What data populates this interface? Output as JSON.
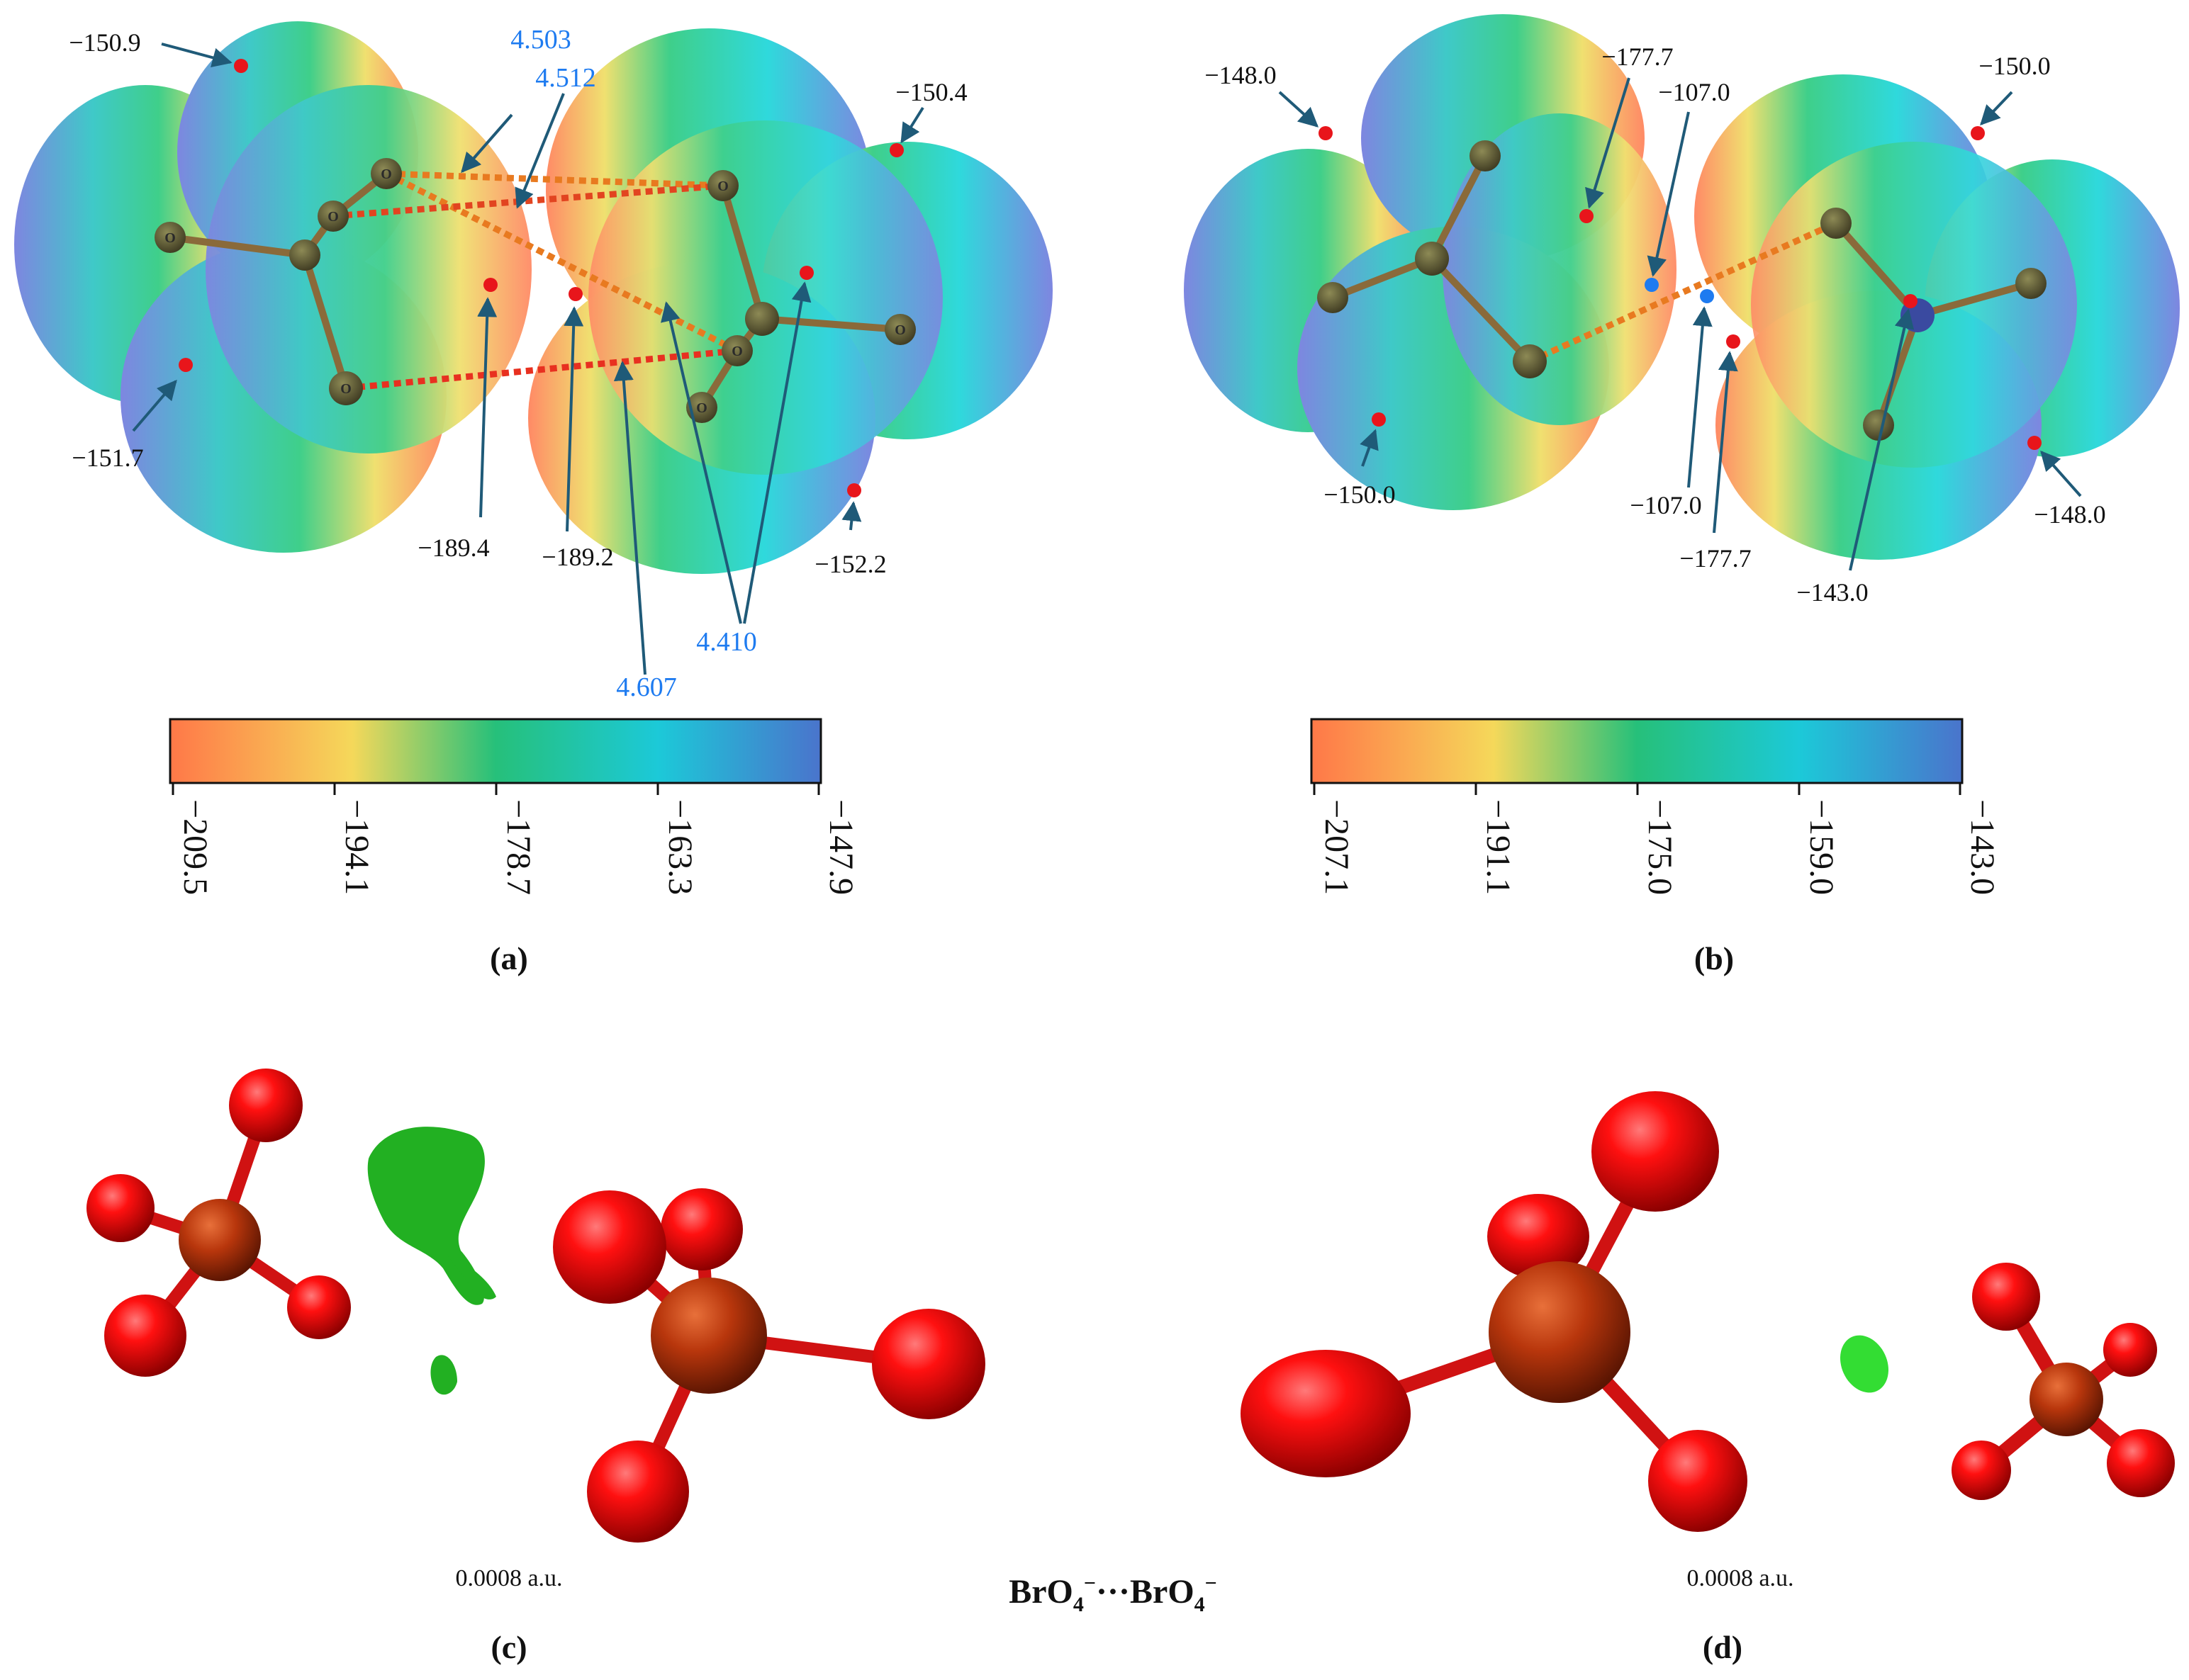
{
  "panels": {
    "a": {
      "label": "(a)",
      "esp_values": [
        "−150.9",
        "−150.4",
        "−151.7",
        "−189.4",
        "−189.2",
        "−152.2"
      ],
      "distances": [
        "4.503",
        "4.512",
        "4.410",
        "4.607"
      ],
      "colorbar_ticks": [
        "−209.5",
        "−194.1",
        "−178.7",
        "−163.3",
        "−147.9"
      ],
      "atom_symbol": "O"
    },
    "b": {
      "label": "(b)",
      "esp_values": [
        "−148.0",
        "−177.7",
        "−107.0",
        "−150.0",
        "−150.0",
        "−107.0",
        "−177.7",
        "−148.0",
        "−143.0"
      ],
      "colorbar_ticks": [
        "−207.1",
        "−191.1",
        "−175.0",
        "−159.0",
        "−143.0"
      ],
      "atom_symbol": "O"
    },
    "c": {
      "label": "(c)",
      "isovalue": "0.0008 a.u."
    },
    "d": {
      "label": "(d)",
      "isovalue": "0.0008 a.u."
    }
  },
  "shared_caption": {
    "base": "BrO",
    "sub": "4",
    "sup": "−",
    "dots": "···"
  },
  "colors": {
    "minimum_point": "#e8151b",
    "maximum_point": "#1e7bf0",
    "arrow": "#1f5a78",
    "distance_text": "#1e7bf0",
    "oxygen_sphere": "#ff0000",
    "bromine_sphere": "#b8360c",
    "nci_isosurface": "#22b022"
  }
}
